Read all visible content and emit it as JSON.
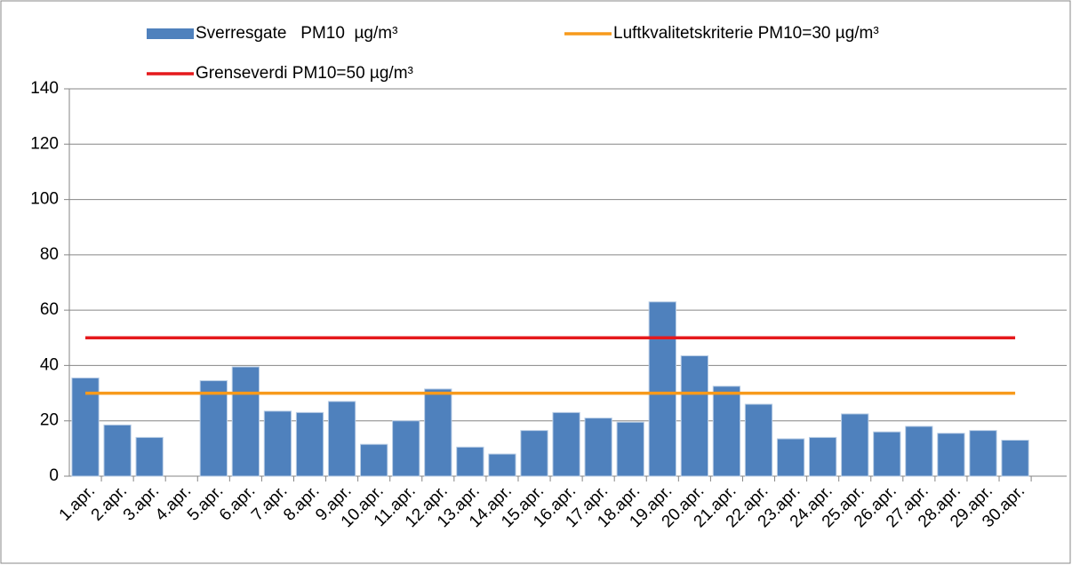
{
  "chart_data": {
    "type": "bar",
    "categories": [
      "1.apr.",
      "2.apr.",
      "3.apr.",
      "4.apr.",
      "5.apr.",
      "6.apr.",
      "7.apr.",
      "8.apr.",
      "9.apr.",
      "10.apr.",
      "11.apr.",
      "12.apr.",
      "13.apr.",
      "14.apr.",
      "15.apr.",
      "16.apr.",
      "17.apr.",
      "18.apr.",
      "19.apr.",
      "20.apr.",
      "21.apr.",
      "22.apr.",
      "23.apr.",
      "24.apr.",
      "25.apr.",
      "26.apr.",
      "27.apr.",
      "28.apr.",
      "29.apr.",
      "30.apr."
    ],
    "series": [
      {
        "name": "Sverresgate   PM10  µg/m³",
        "type": "bar",
        "color": "#4f81bd",
        "values": [
          35.5,
          18.5,
          14,
          null,
          34.5,
          39.5,
          23.5,
          23,
          27,
          11.5,
          20,
          31.5,
          10.5,
          8,
          16.5,
          23,
          21,
          19.5,
          63,
          43.5,
          32.5,
          26,
          13.5,
          14,
          22.5,
          16,
          18,
          15.5,
          16.5,
          13
        ]
      },
      {
        "name": "Luftkvalitetskriterie PM10=30 µg/m³",
        "type": "line",
        "color": "#f79a1b",
        "values": [
          30,
          30,
          30,
          30,
          30,
          30,
          30,
          30,
          30,
          30,
          30,
          30,
          30,
          30,
          30,
          30,
          30,
          30,
          30,
          30,
          30,
          30,
          30,
          30,
          30,
          30,
          30,
          30,
          30,
          30
        ]
      },
      {
        "name": "Grenseverdi PM10=50 µg/m³",
        "type": "line",
        "color": "#e5191c",
        "values": [
          50,
          50,
          50,
          50,
          50,
          50,
          50,
          50,
          50,
          50,
          50,
          50,
          50,
          50,
          50,
          50,
          50,
          50,
          50,
          50,
          50,
          50,
          50,
          50,
          50,
          50,
          50,
          50,
          50,
          50
        ]
      }
    ],
    "ylim": [
      0,
      140
    ],
    "yticks": [
      0,
      20,
      40,
      60,
      80,
      100,
      120,
      140
    ],
    "grid": true
  }
}
